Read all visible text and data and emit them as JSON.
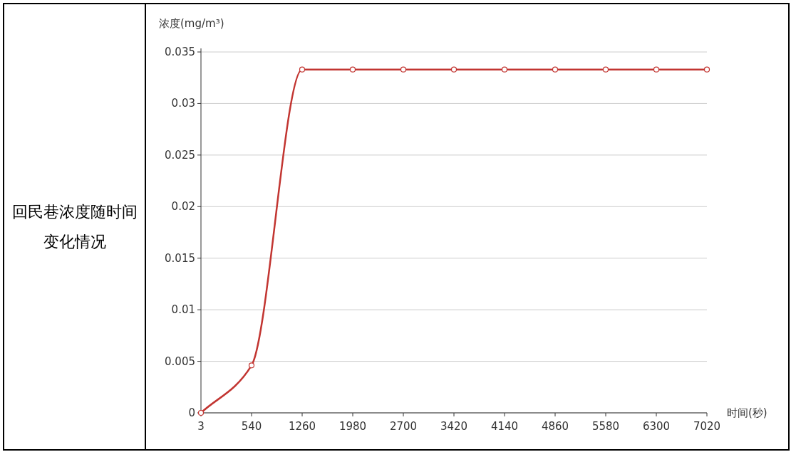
{
  "chart_data": {
    "type": "line",
    "title": "回民巷浓度随时间变化情况",
    "ylabel": "浓度(mg/m³)",
    "xlabel": "时间(秒)",
    "categories": [
      "3",
      "540",
      "1260",
      "1980",
      "2700",
      "3420",
      "4140",
      "4860",
      "5580",
      "6300",
      "7020"
    ],
    "series": [
      {
        "color": "#c23531",
        "values": [
          0,
          0.0046,
          0.0333,
          0.0333,
          0.0333,
          0.0333,
          0.0333,
          0.0333,
          0.0333,
          0.0333,
          0.0333
        ]
      }
    ],
    "ylim": [
      0,
      0.035
    ],
    "yticks": [
      0,
      0.005,
      0.01,
      0.015,
      0.02,
      0.025,
      0.03,
      0.035
    ],
    "grid": "y",
    "marker": "circle",
    "line_style": "solid"
  }
}
